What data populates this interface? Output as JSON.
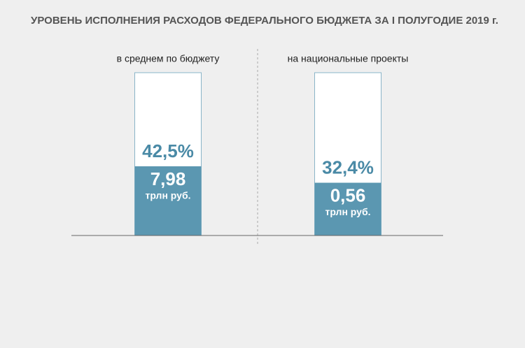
{
  "chart_data": {
    "type": "bar",
    "title": "УРОВЕНЬ ИСПОЛНЕНИЯ РАСХОДОВ ФЕДЕРАЛЬНОГО БЮДЖЕТА ЗА I ПОЛУГОДИЕ 2019 г.",
    "categories": [
      "в среднем по бюджету",
      "на национальные проекты"
    ],
    "values": [
      42.5,
      32.4
    ],
    "value_labels": [
      "42,5%",
      "32,4%"
    ],
    "amount_labels": [
      "7,98",
      "0,56"
    ],
    "amount_unit": "трлн руб.",
    "color": "#5b97b1",
    "ylim": [
      0,
      100
    ]
  }
}
